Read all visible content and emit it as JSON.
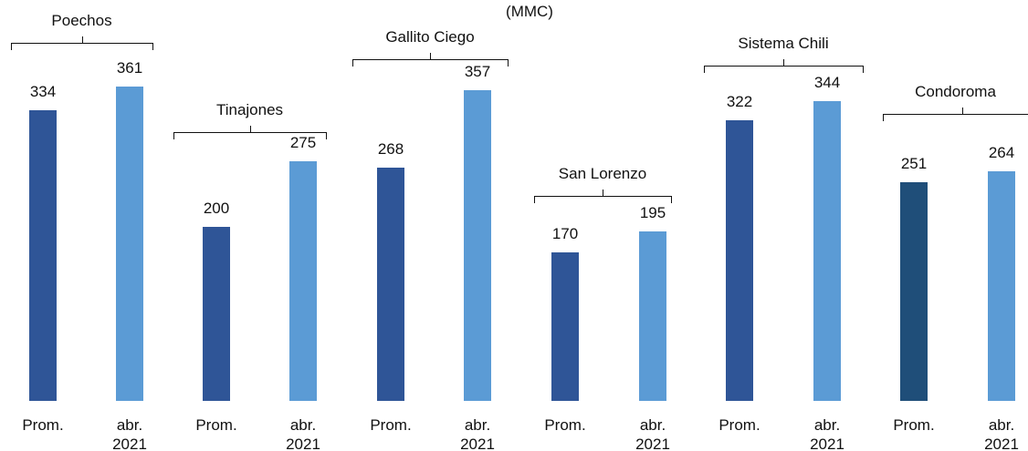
{
  "chart_data": {
    "type": "bar",
    "title": "(MMC)",
    "categories": [
      "Prom.",
      "abr. 2021"
    ],
    "groups": [
      {
        "name": "Poechos",
        "values": [
          334,
          361
        ],
        "colors": [
          "#2f5597",
          "#5b9bd5"
        ]
      },
      {
        "name": "Tinajones",
        "values": [
          200,
          275
        ],
        "colors": [
          "#2f5597",
          "#5b9bd5"
        ]
      },
      {
        "name": "Gallito Ciego",
        "values": [
          268,
          357
        ],
        "colors": [
          "#2f5597",
          "#5b9bd5"
        ]
      },
      {
        "name": "San Lorenzo",
        "values": [
          170,
          195
        ],
        "colors": [
          "#2f5597",
          "#5b9bd5"
        ]
      },
      {
        "name": "Sistema Chili",
        "values": [
          322,
          344
        ],
        "colors": [
          "#2f5597",
          "#5b9bd5"
        ]
      },
      {
        "name": "Condoroma",
        "values": [
          251,
          264
        ],
        "colors": [
          "#1f4e79",
          "#5b9bd5"
        ]
      }
    ]
  }
}
